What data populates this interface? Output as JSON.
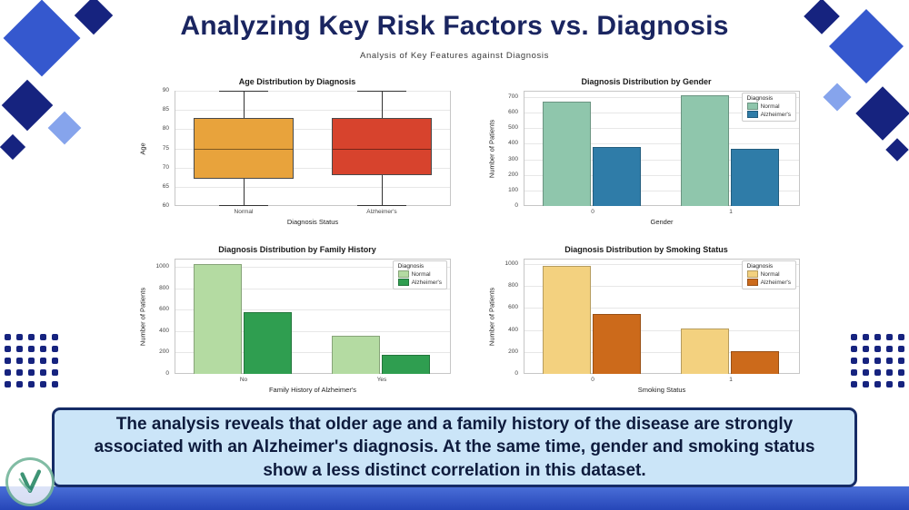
{
  "title": "Analyzing Key Risk Factors vs. Diagnosis",
  "subtitle": "Analysis of Key Features against Diagnosis",
  "summary": "The analysis reveals that older age and a family history of the disease are strongly associated with an Alzheimer's diagnosis. At the same time, gender and smoking status show a less distinct correlation in this dataset.",
  "colors": {
    "accent_navy": "#16237F",
    "accent_blue": "#3558CE",
    "summary_bg": "#CBE5F8",
    "summary_border": "#152B66"
  },
  "chart_data": [
    {
      "type": "box",
      "title": "Age Distribution by Diagnosis",
      "xlabel": "Diagnosis Status",
      "ylabel": "Age",
      "ylim": [
        60,
        90
      ],
      "yticks": [
        60,
        65,
        70,
        75,
        80,
        85,
        90
      ],
      "categories": [
        "Normal",
        "Alzheimer's"
      ],
      "boxes": [
        {
          "label": "Normal",
          "color": "#E8A33C",
          "low": 60,
          "q1": 67,
          "median": 75,
          "q3": 83,
          "high": 90
        },
        {
          "label": "Alzheimer's",
          "color": "#D7432D",
          "low": 60,
          "q1": 68,
          "median": 75,
          "q3": 83,
          "high": 90
        }
      ]
    },
    {
      "type": "bar",
      "title": "Diagnosis Distribution by Gender",
      "xlabel": "Gender",
      "ylabel": "Number of Patients",
      "ylim": [
        0,
        740
      ],
      "yticks": [
        0,
        100,
        200,
        300,
        400,
        500,
        600,
        700
      ],
      "categories": [
        "0",
        "1"
      ],
      "legend_title": "Diagnosis",
      "series": [
        {
          "name": "Normal",
          "color": "#8FC6AC",
          "values": [
            670,
            710
          ]
        },
        {
          "name": "Alzheimer's",
          "color": "#2F7CA8",
          "values": [
            380,
            370
          ]
        }
      ]
    },
    {
      "type": "bar",
      "title": "Diagnosis Distribution by Family History",
      "xlabel": "Family History of Alzheimer's",
      "ylabel": "Number of Patients",
      "ylim": [
        0,
        1080
      ],
      "yticks": [
        0,
        200,
        400,
        600,
        800,
        1000
      ],
      "categories": [
        "No",
        "Yes"
      ],
      "legend_title": "Diagnosis",
      "series": [
        {
          "name": "Normal",
          "color": "#B4DBA2",
          "values": [
            1030,
            360
          ]
        },
        {
          "name": "Alzheimer's",
          "color": "#2F9E50",
          "values": [
            580,
            180
          ]
        }
      ]
    },
    {
      "type": "bar",
      "title": "Diagnosis Distribution by Smoking Status",
      "xlabel": "Smoking Status",
      "ylabel": "Number of Patients",
      "ylim": [
        0,
        1050
      ],
      "yticks": [
        0,
        200,
        400,
        600,
        800,
        1000
      ],
      "categories": [
        "0",
        "1"
      ],
      "legend_title": "Diagnosis",
      "series": [
        {
          "name": "Normal",
          "color": "#F3D17F",
          "values": [
            980,
            410
          ]
        },
        {
          "name": "Alzheimer's",
          "color": "#CC6A1B",
          "values": [
            545,
            210
          ]
        }
      ]
    }
  ]
}
